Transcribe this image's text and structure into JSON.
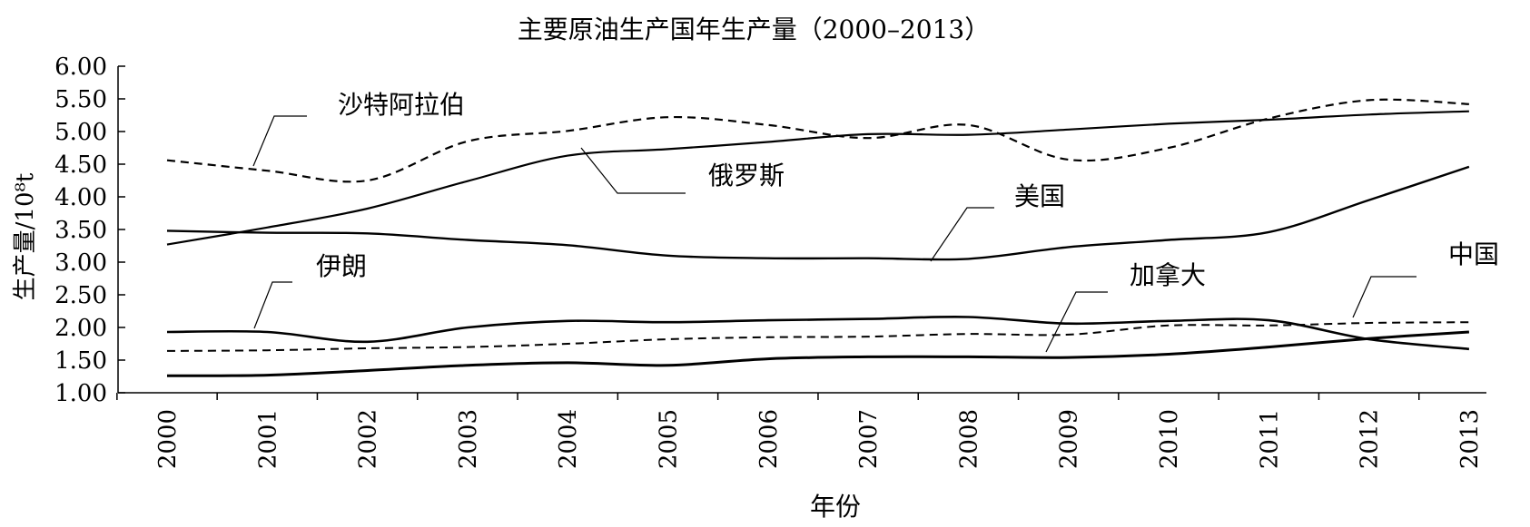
{
  "chart_data": {
    "type": "line",
    "title": "主要原油生产国年生产量（2000–2013）",
    "xlabel": "年份",
    "ylabel": "生产量/10⁸t",
    "ylim": [
      1.0,
      6.0
    ],
    "y_ticks": [
      "1.00",
      "1.50",
      "2.00",
      "2.50",
      "3.00",
      "3.50",
      "4.00",
      "4.50",
      "5.00",
      "5.50",
      "6.00"
    ],
    "categories": [
      "2000",
      "2001",
      "2002",
      "2003",
      "2004",
      "2005",
      "2006",
      "2007",
      "2008",
      "2009",
      "2010",
      "2011",
      "2012",
      "2013"
    ],
    "grid": false,
    "legend": "inline labels with leader lines",
    "series": [
      {
        "name": "沙特阿拉伯",
        "style": "dashed",
        "values": [
          4.56,
          4.4,
          4.25,
          4.85,
          5.01,
          5.22,
          5.1,
          4.9,
          5.1,
          4.57,
          4.75,
          5.2,
          5.48,
          5.42
        ]
      },
      {
        "name": "俄罗斯",
        "style": "solid",
        "values": [
          3.27,
          3.53,
          3.82,
          4.24,
          4.63,
          4.73,
          4.84,
          4.96,
          4.95,
          5.03,
          5.12,
          5.18,
          5.26,
          5.31
        ]
      },
      {
        "name": "美国",
        "style": "solid",
        "values": [
          3.48,
          3.45,
          3.44,
          3.34,
          3.26,
          3.1,
          3.06,
          3.06,
          3.05,
          3.23,
          3.34,
          3.46,
          3.95,
          4.46
        ]
      },
      {
        "name": "伊朗",
        "style": "solid",
        "values": [
          1.93,
          1.93,
          1.78,
          2.0,
          2.1,
          2.08,
          2.11,
          2.13,
          2.16,
          2.06,
          2.1,
          2.11,
          1.82,
          1.67
        ]
      },
      {
        "name": "中国",
        "style": "dashed",
        "values": [
          1.64,
          1.65,
          1.68,
          1.7,
          1.75,
          1.82,
          1.85,
          1.86,
          1.9,
          1.89,
          2.03,
          2.03,
          2.07,
          2.08
        ]
      },
      {
        "name": "加拿大",
        "style": "solid",
        "values": [
          1.26,
          1.27,
          1.34,
          1.42,
          1.46,
          1.42,
          1.52,
          1.55,
          1.55,
          1.54,
          1.59,
          1.7,
          1.83,
          1.93
        ]
      }
    ]
  }
}
